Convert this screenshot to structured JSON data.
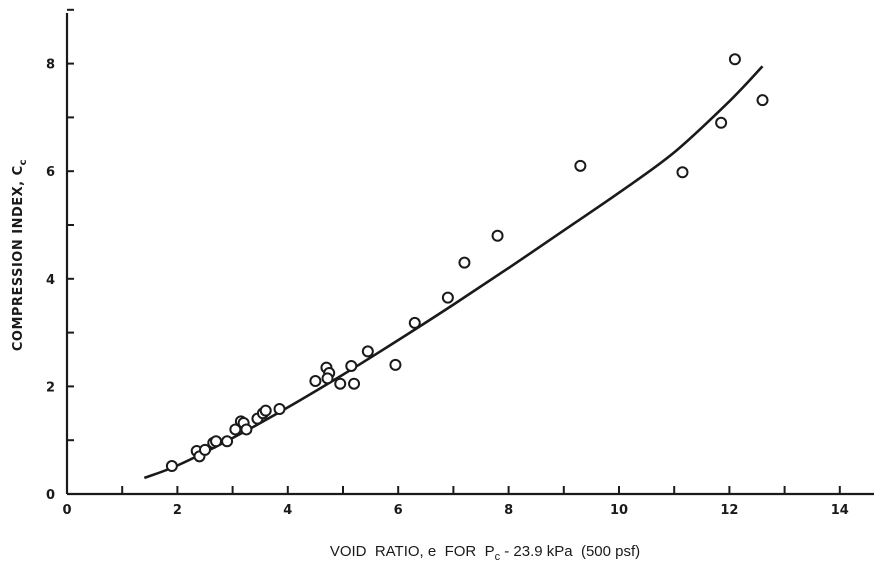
{
  "chart_data": {
    "type": "scatter",
    "xlabel": {
      "prefix": "VOID  RATIO, e  FOR  ",
      "var": "P",
      "sub": "c",
      "suffix": " - 23.9 kPa  (500 psf)"
    },
    "ylabel": {
      "main": "COMPRESSION INDEX, C",
      "sub": "c"
    },
    "xlim": [
      0,
      15
    ],
    "ylim": [
      0,
      9
    ],
    "x_ticks": [
      0,
      2,
      4,
      6,
      8,
      10,
      12,
      14
    ],
    "y_ticks": [
      0,
      2,
      4,
      6,
      8
    ],
    "grid": false,
    "colors": {
      "ink": "#1a1a1a"
    },
    "points": {
      "x": [
        1.9,
        2.35,
        2.4,
        2.5,
        2.65,
        2.7,
        2.9,
        3.05,
        3.15,
        3.2,
        3.25,
        3.45,
        3.55,
        3.6,
        3.85,
        4.5,
        4.7,
        4.75,
        4.72,
        4.95,
        5.15,
        5.2,
        5.45,
        5.95,
        6.3,
        6.9,
        7.2,
        7.8,
        9.3,
        11.15,
        11.85,
        12.1,
        12.6
      ],
      "y": [
        0.52,
        0.8,
        0.7,
        0.82,
        0.95,
        0.98,
        0.98,
        1.2,
        1.35,
        1.32,
        1.2,
        1.4,
        1.5,
        1.55,
        1.58,
        2.1,
        2.35,
        2.25,
        2.15,
        2.05,
        2.38,
        2.05,
        2.65,
        2.4,
        3.18,
        3.65,
        4.3,
        4.8,
        6.1,
        5.98,
        6.9,
        8.08,
        7.32
      ]
    },
    "fit_curve": {
      "x": [
        1.4,
        2,
        3,
        4,
        5,
        6,
        7,
        8,
        9,
        10,
        11,
        12,
        12.6
      ],
      "y": [
        0.3,
        0.53,
        1.04,
        1.61,
        2.22,
        2.86,
        3.52,
        4.2,
        4.9,
        5.6,
        6.35,
        7.3,
        7.95
      ]
    }
  }
}
